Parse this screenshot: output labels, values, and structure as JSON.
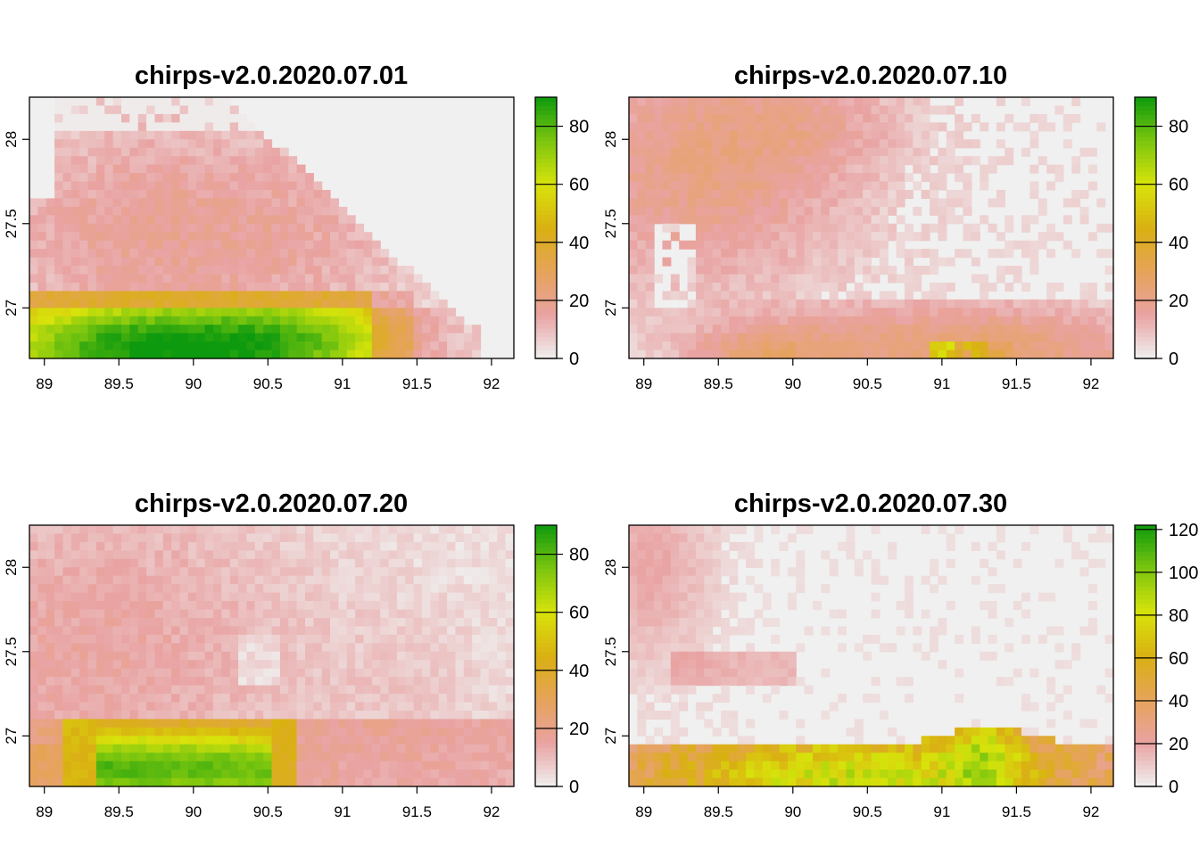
{
  "chart_data": [
    {
      "type": "heatmap",
      "title": "chirps-v2.0.2020.07.01",
      "xlabel": "",
      "ylabel": "",
      "xlim": [
        88.9,
        92.15
      ],
      "ylim": [
        26.7,
        28.25
      ],
      "x_ticks": [
        89,
        89.5,
        90,
        90.5,
        91,
        91.5,
        92
      ],
      "x_tick_labels": [
        "89",
        "89.5",
        "90",
        "90.5",
        "91",
        "91.5",
        "92"
      ],
      "y_ticks": [
        27,
        27.5,
        28
      ],
      "y_tick_labels": [
        "27",
        "27.5",
        "28"
      ],
      "legend": {
        "min": 0,
        "max": 90,
        "ticks": [
          0,
          20,
          40,
          60,
          80
        ],
        "labels": [
          "0",
          "20",
          "40",
          "60",
          "80"
        ],
        "placement": "right"
      },
      "colors": [
        "#f0f0f0",
        "#e9a3a3",
        "#e6a35a",
        "#d9b012",
        "#d8e30b",
        "#7cc60f",
        "#0e9a0e"
      ],
      "grid": false,
      "pattern": "p1"
    },
    {
      "type": "heatmap",
      "title": "chirps-v2.0.2020.07.10",
      "xlabel": "",
      "ylabel": "",
      "xlim": [
        88.9,
        92.15
      ],
      "ylim": [
        26.7,
        28.25
      ],
      "x_ticks": [
        89,
        89.5,
        90,
        90.5,
        91,
        91.5,
        92
      ],
      "x_tick_labels": [
        "89",
        "89.5",
        "90",
        "90.5",
        "91",
        "91.5",
        "92"
      ],
      "y_ticks": [
        27,
        27.5,
        28
      ],
      "y_tick_labels": [
        "27",
        "27.5",
        "28"
      ],
      "legend": {
        "min": 0,
        "max": 90,
        "ticks": [
          0,
          20,
          40,
          60,
          80
        ],
        "labels": [
          "0",
          "20",
          "40",
          "60",
          "80"
        ],
        "placement": "right"
      },
      "colors": [
        "#f0f0f0",
        "#e9a3a3",
        "#e6a35a",
        "#d9b012",
        "#d8e30b",
        "#7cc60f",
        "#0e9a0e"
      ],
      "grid": false,
      "pattern": "p2"
    },
    {
      "type": "heatmap",
      "title": "chirps-v2.0.2020.07.20",
      "xlabel": "",
      "ylabel": "",
      "xlim": [
        88.9,
        92.15
      ],
      "ylim": [
        26.7,
        28.25
      ],
      "x_ticks": [
        89,
        89.5,
        90,
        90.5,
        91,
        91.5,
        92
      ],
      "x_tick_labels": [
        "89",
        "89.5",
        "90",
        "90.5",
        "91",
        "91.5",
        "92"
      ],
      "y_ticks": [
        27,
        27.5,
        28
      ],
      "y_tick_labels": [
        "27",
        "27.5",
        "28"
      ],
      "legend": {
        "min": 0,
        "max": 90,
        "ticks": [
          0,
          20,
          40,
          60,
          80
        ],
        "labels": [
          "0",
          "20",
          "40",
          "60",
          "80"
        ],
        "placement": "right"
      },
      "colors": [
        "#f0f0f0",
        "#e9a3a3",
        "#e6a35a",
        "#d9b012",
        "#d8e30b",
        "#7cc60f",
        "#0e9a0e"
      ],
      "grid": false,
      "pattern": "p3"
    },
    {
      "type": "heatmap",
      "title": "chirps-v2.0.2020.07.30",
      "xlabel": "",
      "ylabel": "",
      "xlim": [
        88.9,
        92.15
      ],
      "ylim": [
        26.7,
        28.25
      ],
      "x_ticks": [
        89,
        89.5,
        90,
        90.5,
        91,
        91.5,
        92
      ],
      "x_tick_labels": [
        "89",
        "89.5",
        "90",
        "90.5",
        "91",
        "91.5",
        "92"
      ],
      "y_ticks": [
        27,
        27.5,
        28
      ],
      "y_tick_labels": [
        "27",
        "27.5",
        "28"
      ],
      "legend": {
        "min": 0,
        "max": 122,
        "ticks": [
          0,
          20,
          40,
          60,
          80,
          100,
          120
        ],
        "labels": [
          "0",
          "20",
          "40",
          "60",
          "80",
          "100",
          "120"
        ],
        "placement": "right"
      },
      "colors": [
        "#f0f0f0",
        "#e9a3a3",
        "#e6a35a",
        "#d9b012",
        "#d8e30b",
        "#7cc60f",
        "#0e9a0e"
      ],
      "grid": false,
      "pattern": "p4"
    }
  ]
}
